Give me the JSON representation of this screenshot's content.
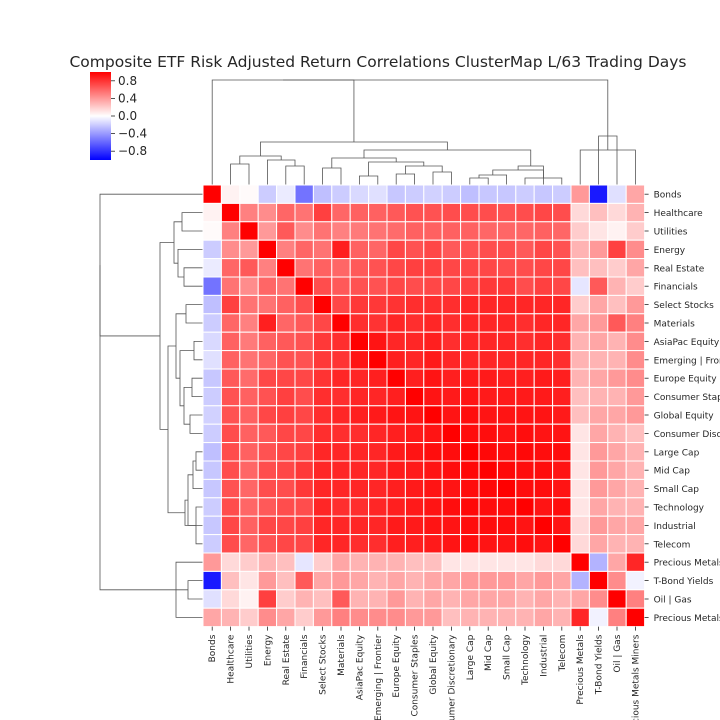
{
  "chart_data": {
    "type": "heatmap",
    "title": "Composite ETF Risk Adjusted Return Correlations ClusterMap L/63 Trading Days",
    "row_labels": [
      "Bonds",
      "Healthcare",
      "Utilities",
      "Energy",
      "Real Estate",
      "Financials",
      "Select Stocks",
      "Materials",
      "AsiaPac Equity",
      "Emerging | Frontier",
      "Europe Equity",
      "Consumer Staples",
      "Global Equity",
      "Consumer Discretionary",
      "Large Cap",
      "Mid Cap",
      "Small Cap",
      "Technology",
      "Industrial",
      "Telecom",
      "Precious Metals",
      "T-Bond Yields",
      "Oil | Gas",
      "Precious Metals Miners"
    ],
    "col_labels": [
      "Bonds",
      "Healthcare",
      "Utilities",
      "Energy",
      "Real Estate",
      "Financials",
      "Select Stocks",
      "Materials",
      "AsiaPac Equity",
      "Emerging | Frontier",
      "Europe Equity",
      "Consumer Staples",
      "Global Equity",
      "Consumer Discretionary",
      "Large Cap",
      "Mid Cap",
      "Small Cap",
      "Technology",
      "Industrial",
      "Telecom",
      "Precious Metals",
      "T-Bond Yields",
      "Oil | Gas",
      "Precious Metals Miners"
    ],
    "values": [
      [
        1.0,
        0.05,
        0.02,
        -0.2,
        -0.08,
        -0.55,
        -0.25,
        -0.2,
        -0.15,
        -0.12,
        -0.22,
        -0.2,
        -0.18,
        -0.2,
        -0.25,
        -0.22,
        -0.22,
        -0.2,
        -0.22,
        -0.2,
        0.4,
        -0.9,
        -0.12,
        0.35
      ],
      [
        0.05,
        1.0,
        0.5,
        0.45,
        0.6,
        0.55,
        0.75,
        0.6,
        0.62,
        0.62,
        0.65,
        0.68,
        0.68,
        0.7,
        0.7,
        0.7,
        0.68,
        0.7,
        0.72,
        0.7,
        0.15,
        0.25,
        0.15,
        0.3
      ],
      [
        0.02,
        0.5,
        1.0,
        0.4,
        0.65,
        0.45,
        0.55,
        0.5,
        0.52,
        0.55,
        0.58,
        0.62,
        0.62,
        0.62,
        0.62,
        0.6,
        0.6,
        0.6,
        0.62,
        0.6,
        0.2,
        0.1,
        0.05,
        0.2
      ],
      [
        -0.2,
        0.45,
        0.4,
        1.0,
        0.5,
        0.6,
        0.55,
        0.88,
        0.62,
        0.6,
        0.72,
        0.68,
        0.72,
        0.65,
        0.68,
        0.7,
        0.7,
        0.65,
        0.72,
        0.68,
        0.3,
        0.4,
        0.75,
        0.45
      ],
      [
        -0.08,
        0.6,
        0.65,
        0.5,
        1.0,
        0.55,
        0.62,
        0.6,
        0.65,
        0.68,
        0.72,
        0.75,
        0.75,
        0.72,
        0.72,
        0.72,
        0.7,
        0.7,
        0.72,
        0.72,
        0.25,
        0.25,
        0.2,
        0.35
      ],
      [
        -0.55,
        0.55,
        0.45,
        0.6,
        0.55,
        1.0,
        0.7,
        0.65,
        0.68,
        0.68,
        0.72,
        0.7,
        0.72,
        0.72,
        0.75,
        0.78,
        0.78,
        0.7,
        0.75,
        0.72,
        -0.1,
        0.65,
        0.3,
        0.2
      ],
      [
        -0.25,
        0.75,
        0.55,
        0.55,
        0.62,
        0.7,
        1.0,
        0.72,
        0.78,
        0.78,
        0.8,
        0.82,
        0.82,
        0.82,
        0.85,
        0.85,
        0.85,
        0.85,
        0.85,
        0.85,
        0.2,
        0.35,
        0.25,
        0.4
      ],
      [
        -0.2,
        0.6,
        0.5,
        0.88,
        0.6,
        0.65,
        0.72,
        1.0,
        0.82,
        0.8,
        0.85,
        0.82,
        0.85,
        0.82,
        0.85,
        0.85,
        0.85,
        0.82,
        0.85,
        0.85,
        0.35,
        0.4,
        0.65,
        0.5
      ],
      [
        -0.15,
        0.62,
        0.52,
        0.62,
        0.65,
        0.68,
        0.78,
        0.82,
        1.0,
        0.92,
        0.85,
        0.85,
        0.88,
        0.82,
        0.85,
        0.85,
        0.85,
        0.82,
        0.85,
        0.82,
        0.3,
        0.35,
        0.3,
        0.45
      ],
      [
        -0.12,
        0.62,
        0.55,
        0.6,
        0.68,
        0.68,
        0.78,
        0.8,
        0.92,
        1.0,
        0.88,
        0.85,
        0.9,
        0.85,
        0.85,
        0.85,
        0.85,
        0.85,
        0.85,
        0.82,
        0.3,
        0.3,
        0.3,
        0.45
      ],
      [
        -0.22,
        0.65,
        0.58,
        0.72,
        0.72,
        0.72,
        0.8,
        0.85,
        0.85,
        0.88,
        1.0,
        0.88,
        0.92,
        0.88,
        0.9,
        0.9,
        0.88,
        0.88,
        0.9,
        0.88,
        0.3,
        0.35,
        0.4,
        0.45
      ],
      [
        -0.2,
        0.68,
        0.62,
        0.68,
        0.75,
        0.7,
        0.82,
        0.82,
        0.85,
        0.85,
        0.88,
        1.0,
        0.92,
        0.9,
        0.92,
        0.9,
        0.9,
        0.9,
        0.9,
        0.88,
        0.25,
        0.3,
        0.3,
        0.4
      ],
      [
        -0.18,
        0.68,
        0.62,
        0.72,
        0.75,
        0.72,
        0.82,
        0.85,
        0.88,
        0.9,
        0.92,
        0.92,
        1.0,
        0.92,
        0.95,
        0.92,
        0.92,
        0.92,
        0.92,
        0.9,
        0.25,
        0.35,
        0.35,
        0.4
      ],
      [
        -0.2,
        0.7,
        0.62,
        0.65,
        0.72,
        0.72,
        0.82,
        0.82,
        0.82,
        0.85,
        0.88,
        0.9,
        0.92,
        1.0,
        0.95,
        0.95,
        0.92,
        0.95,
        0.92,
        0.92,
        0.1,
        0.35,
        0.3,
        0.25
      ],
      [
        -0.25,
        0.7,
        0.62,
        0.68,
        0.72,
        0.75,
        0.85,
        0.85,
        0.85,
        0.85,
        0.9,
        0.92,
        0.95,
        0.95,
        1.0,
        0.97,
        0.95,
        0.97,
        0.95,
        0.95,
        0.1,
        0.4,
        0.35,
        0.3
      ],
      [
        -0.22,
        0.7,
        0.6,
        0.7,
        0.72,
        0.78,
        0.85,
        0.85,
        0.85,
        0.85,
        0.9,
        0.9,
        0.92,
        0.95,
        0.97,
        1.0,
        0.97,
        0.95,
        0.95,
        0.92,
        0.1,
        0.4,
        0.35,
        0.3
      ],
      [
        -0.22,
        0.68,
        0.6,
        0.7,
        0.7,
        0.78,
        0.85,
        0.85,
        0.85,
        0.85,
        0.88,
        0.9,
        0.92,
        0.92,
        0.95,
        0.97,
        1.0,
        0.95,
        0.95,
        0.92,
        0.1,
        0.4,
        0.35,
        0.3
      ],
      [
        -0.2,
        0.7,
        0.6,
        0.65,
        0.7,
        0.7,
        0.85,
        0.82,
        0.82,
        0.85,
        0.88,
        0.9,
        0.92,
        0.95,
        0.97,
        0.95,
        0.95,
        1.0,
        0.92,
        0.95,
        0.1,
        0.35,
        0.3,
        0.3
      ],
      [
        -0.22,
        0.72,
        0.62,
        0.72,
        0.72,
        0.75,
        0.85,
        0.85,
        0.85,
        0.85,
        0.9,
        0.9,
        0.92,
        0.92,
        0.95,
        0.95,
        0.95,
        0.92,
        1.0,
        0.92,
        0.15,
        0.4,
        0.35,
        0.35
      ],
      [
        -0.2,
        0.7,
        0.6,
        0.68,
        0.72,
        0.72,
        0.85,
        0.85,
        0.82,
        0.82,
        0.88,
        0.88,
        0.9,
        0.92,
        0.95,
        0.92,
        0.92,
        0.95,
        0.92,
        1.0,
        0.15,
        0.35,
        0.3,
        0.3
      ],
      [
        0.4,
        0.15,
        0.2,
        0.3,
        0.25,
        -0.1,
        0.2,
        0.35,
        0.3,
        0.3,
        0.3,
        0.25,
        0.25,
        0.1,
        0.1,
        0.1,
        0.1,
        0.1,
        0.15,
        0.15,
        1.0,
        -0.3,
        0.35,
        0.85
      ],
      [
        -0.9,
        0.25,
        0.1,
        0.4,
        0.25,
        0.65,
        0.35,
        0.4,
        0.35,
        0.3,
        0.35,
        0.3,
        0.35,
        0.35,
        0.4,
        0.4,
        0.4,
        0.35,
        0.4,
        0.35,
        -0.3,
        1.0,
        0.45,
        -0.05
      ],
      [
        -0.12,
        0.15,
        0.05,
        0.75,
        0.2,
        0.3,
        0.25,
        0.65,
        0.3,
        0.3,
        0.4,
        0.3,
        0.35,
        0.3,
        0.35,
        0.35,
        0.35,
        0.3,
        0.35,
        0.3,
        0.35,
        0.45,
        1.0,
        0.5
      ],
      [
        0.35,
        0.3,
        0.2,
        0.45,
        0.35,
        0.2,
        0.4,
        0.5,
        0.45,
        0.45,
        0.45,
        0.4,
        0.4,
        0.25,
        0.3,
        0.3,
        0.3,
        0.3,
        0.35,
        0.3,
        0.85,
        -0.05,
        0.5,
        1.0
      ]
    ],
    "vmin": -1,
    "vmax": 1,
    "colorbar_ticks": [
      0.8,
      0.4,
      0.0,
      -0.4,
      -0.8
    ],
    "colorbar_tick_labels": [
      "0.8",
      "0.4",
      "0.0",
      "−0.4",
      "−0.8"
    ],
    "colormap": [
      "#0000ff",
      "#ffffff",
      "#ff0000"
    ],
    "xlabel": "",
    "ylabel": ""
  }
}
